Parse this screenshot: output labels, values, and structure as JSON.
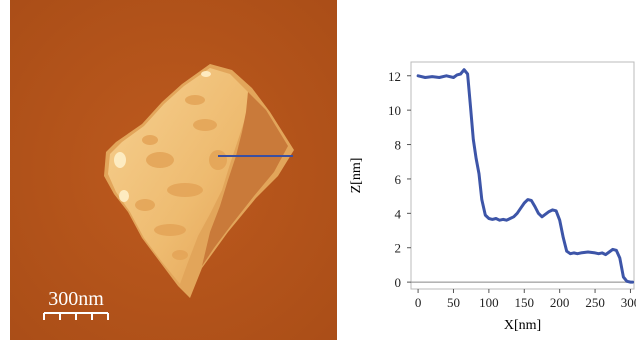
{
  "afm_image": {
    "scale_bar_label": "300nm",
    "colors": {
      "substrate": "#b5541b",
      "flake_light": "#f2c87c",
      "flake_mid": "#e3a255",
      "flake_dark": "#c8783a",
      "scan_line": "#3a4fa0"
    }
  },
  "chart_data": {
    "type": "line",
    "title": "",
    "xlabel": "X[nm]",
    "ylabel": "Z[nm]",
    "xlim": [
      -10,
      305
    ],
    "ylim": [
      -0.4,
      12.8
    ],
    "xticks": [
      0,
      50,
      100,
      150,
      200,
      250,
      300
    ],
    "yticks": [
      0,
      2,
      4,
      6,
      8,
      10,
      12
    ],
    "grid": false,
    "line_color": "#3d55a8",
    "baseline_color": "#888888",
    "series": [
      {
        "x": [
          0,
          10,
          20,
          30,
          40,
          50,
          55,
          60,
          65,
          70,
          74,
          78,
          82,
          86,
          90,
          95,
          100,
          105,
          110,
          115,
          120,
          125,
          130,
          135,
          140,
          145,
          150,
          155,
          160,
          165,
          170,
          175,
          180,
          185,
          190,
          195,
          200,
          205,
          210,
          215,
          220,
          225,
          230,
          240,
          250,
          255,
          260,
          265,
          270,
          275,
          280,
          285,
          290,
          295,
          300,
          303
        ],
        "y": [
          12.0,
          11.9,
          11.95,
          11.9,
          12.0,
          11.9,
          12.05,
          12.1,
          12.35,
          12.1,
          10.2,
          8.3,
          7.2,
          6.3,
          4.8,
          3.9,
          3.7,
          3.65,
          3.7,
          3.6,
          3.65,
          3.6,
          3.7,
          3.8,
          4.0,
          4.3,
          4.6,
          4.8,
          4.75,
          4.4,
          4.0,
          3.8,
          3.95,
          4.1,
          4.2,
          4.15,
          3.6,
          2.6,
          1.8,
          1.65,
          1.7,
          1.65,
          1.7,
          1.75,
          1.7,
          1.65,
          1.7,
          1.6,
          1.75,
          1.9,
          1.85,
          1.4,
          0.3,
          0.05,
          0.0,
          0.0
        ]
      }
    ]
  }
}
